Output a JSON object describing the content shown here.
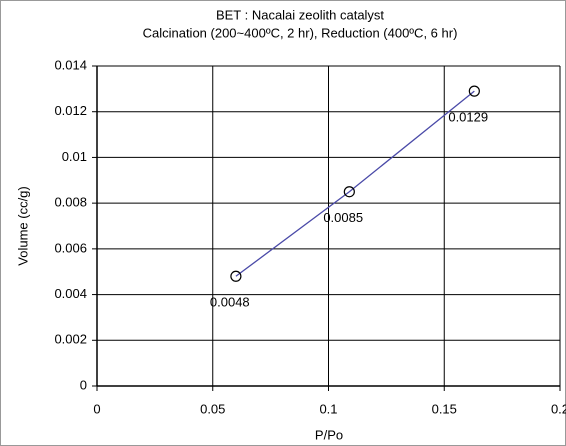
{
  "chart_data": {
    "type": "line",
    "title": "BET  : Nacalai zeolith catalyst",
    "subtitle": "Calcination (200~400ºC, 2 hr), Reduction (400ºC, 6 hr)",
    "x_label": "P/Po",
    "y_label": "Volume (cc/g)",
    "series": [
      {
        "color": "#4a4aa8",
        "x": [
          0.06,
          0.109,
          0.163
        ],
        "values": [
          0.0048,
          0.0085,
          0.0129
        ]
      }
    ],
    "xlim": [
      0,
      0.2
    ],
    "xticks": [
      0,
      0.05,
      0.1,
      0.15,
      0.2
    ],
    "ylim": [
      0,
      0.014
    ],
    "yticks": [
      0,
      0.002,
      0.004,
      0.006,
      0.008,
      0.01,
      0.012,
      0.014
    ],
    "grid": true
  }
}
